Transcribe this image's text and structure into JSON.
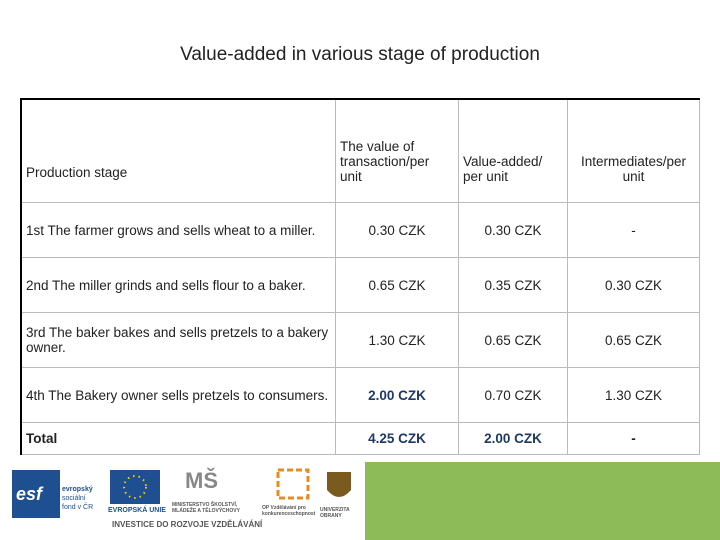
{
  "title": "Value-added in various stage of production",
  "table": {
    "header": [
      "Production stage",
      "The value of transaction/per unit",
      "Value-added/ per unit",
      "Intermediates/per unit"
    ],
    "rows": [
      [
        "1st The farmer grows and sells wheat to a miller.",
        "0.30 CZK",
        "0.30 CZK",
        "-"
      ],
      [
        "2nd The miller grinds and sells flour to a baker.",
        "0.65 CZK",
        "0.35 CZK",
        "0.30 CZK"
      ],
      [
        "3rd The baker bakes and sells pretzels to a bakery owner.",
        "1.30 CZK",
        "0.65 CZK",
        "0.65 CZK"
      ],
      [
        "4th The Bakery owner sells pretzels to consumers.",
        "2.00 CZK",
        "0.70 CZK",
        "1.30 CZK"
      ],
      [
        "Total",
        "4.25 CZK",
        "2.00 CZK",
        "-"
      ]
    ]
  },
  "footer": {
    "esf": [
      "esf",
      "evropský",
      "sociální",
      "fond v ČR"
    ],
    "eu": "EVROPSKÁ UNIE",
    "msmt": "MINISTERSTVO ŠKOLSTVÍ, MLÁDEŽE A TĚLOVÝCHOVY",
    "op": "OP Vzdělávání pro konkurenceschopnost",
    "univ": "UNIVERZITA OBRANY",
    "slogan": "INVESTICE DO ROZVOJE VZDĚLÁVÁNÍ"
  }
}
